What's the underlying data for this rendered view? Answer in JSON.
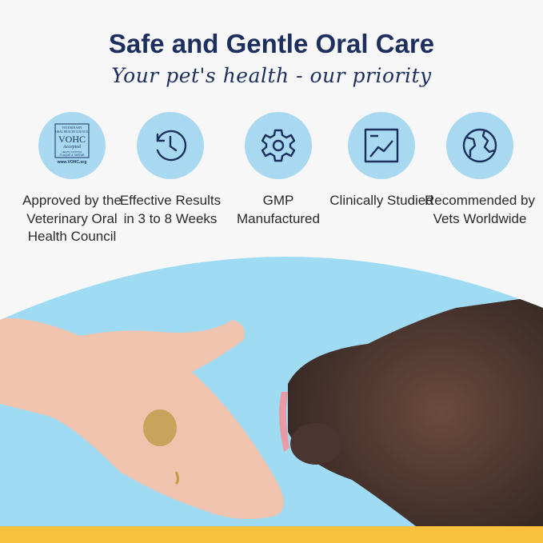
{
  "header": {
    "title": "Safe and Gentle Oral Care",
    "subtitle": "Your pet's health - our priority"
  },
  "colors": {
    "navy": "#1c2f5e",
    "circle": "#a9d9f1",
    "photo_bg": "#9fdcf3",
    "accent_bar": "#f8c23f"
  },
  "features": [
    {
      "icon": "vohc-seal-icon",
      "label": "Approved by the Veterinary Oral Health Council",
      "seal": {
        "line1": "VETERINARY",
        "line2": "ORAL HEALTH COUNCIL",
        "main": "VOHC",
        "accepted": "Accepted",
        "line3": "HELPS CONTROL",
        "line4": "PLAQUE & TARTAR",
        "url": "www.VOHC.org"
      }
    },
    {
      "icon": "clock-icon",
      "label": "Effective Results in 3 to 8 Weeks"
    },
    {
      "icon": "gear-icon",
      "label": "GMP Manufactured"
    },
    {
      "icon": "chart-icon",
      "label": "Clinically Studied"
    },
    {
      "icon": "globe-icon",
      "label": "Recommended by Vets Worldwide"
    }
  ]
}
